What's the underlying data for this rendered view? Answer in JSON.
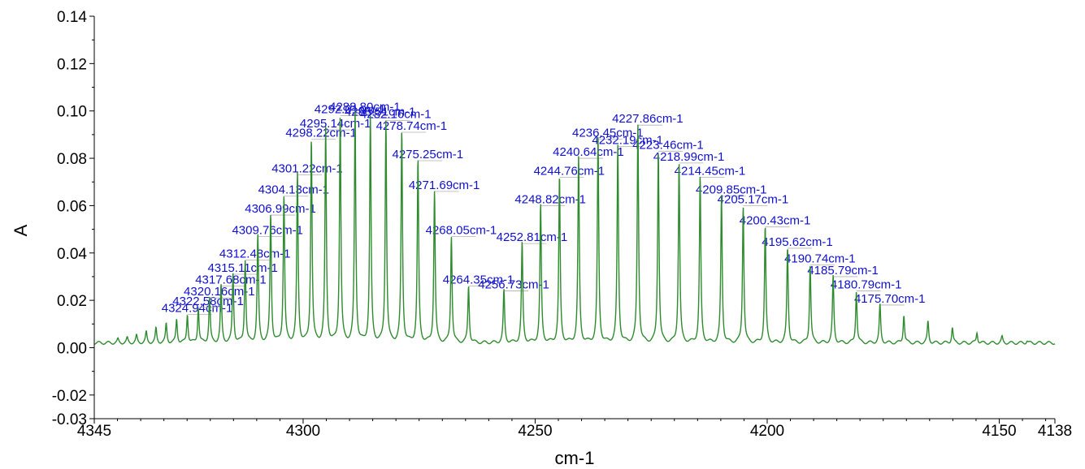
{
  "chart_data": {
    "type": "line",
    "title": "",
    "xlabel": "cm-1",
    "ylabel": "A",
    "xlim": [
      4345,
      4138
    ],
    "ylim": [
      -0.03,
      0.14
    ],
    "x_reversed": true,
    "grid": false,
    "x_ticks": [
      4345,
      4300,
      4250,
      4200,
      4150,
      4138
    ],
    "x_tick_labels": [
      "4345",
      "4300",
      "4250",
      "4200",
      "4150",
      "4138"
    ],
    "y_ticks": [
      -0.03,
      -0.02,
      0.0,
      0.02,
      0.04,
      0.06,
      0.08,
      0.1,
      0.12,
      0.14
    ],
    "y_tick_labels": [
      "-0.03",
      "-0.02",
      "0.00",
      "0.02",
      "0.04",
      "0.06",
      "0.08",
      "0.10",
      "0.12",
      "0.14"
    ],
    "line_color": "#2e8b2e",
    "label_color": "#1010d0",
    "baseline": 0.002,
    "labeled_peaks": [
      {
        "x": 4324.94,
        "y": 0.014,
        "label": "4324.94cm-1"
      },
      {
        "x": 4322.58,
        "y": 0.017,
        "label": "4322.58cm-1"
      },
      {
        "x": 4320.16,
        "y": 0.021,
        "label": "4320.16cm-1"
      },
      {
        "x": 4317.68,
        "y": 0.026,
        "label": "4317.68cm-1"
      },
      {
        "x": 4315.11,
        "y": 0.031,
        "label": "4315.11cm-1"
      },
      {
        "x": 4312.48,
        "y": 0.037,
        "label": "4312.48cm-1"
      },
      {
        "x": 4309.76,
        "y": 0.047,
        "label": "4309.76cm-1"
      },
      {
        "x": 4306.99,
        "y": 0.056,
        "label": "4306.99cm-1"
      },
      {
        "x": 4304.13,
        "y": 0.064,
        "label": "4304.13cm-1"
      },
      {
        "x": 4301.22,
        "y": 0.073,
        "label": "4301.22cm-1"
      },
      {
        "x": 4298.22,
        "y": 0.088,
        "label": "4298.22cm-1"
      },
      {
        "x": 4295.14,
        "y": 0.092,
        "label": "4295.14cm-1"
      },
      {
        "x": 4292.01,
        "y": 0.098,
        "label": "4292.01cm-1"
      },
      {
        "x": 4288.8,
        "y": 0.099,
        "label": "4288.80cm-1"
      },
      {
        "x": 4285.51,
        "y": 0.097,
        "label": "4285.51cm-1"
      },
      {
        "x": 4282.16,
        "y": 0.096,
        "label": "4282.16cm-1"
      },
      {
        "x": 4278.74,
        "y": 0.091,
        "label": "4278.74cm-1"
      },
      {
        "x": 4275.25,
        "y": 0.079,
        "label": "4275.25cm-1"
      },
      {
        "x": 4271.69,
        "y": 0.066,
        "label": "4271.69cm-1"
      },
      {
        "x": 4268.05,
        "y": 0.047,
        "label": "4268.05cm-1"
      },
      {
        "x": 4264.35,
        "y": 0.026,
        "label": "4264.35cm-1"
      },
      {
        "x": 4256.73,
        "y": 0.024,
        "label": "4256.73cm-1"
      },
      {
        "x": 4252.81,
        "y": 0.044,
        "label": "4252.81cm-1"
      },
      {
        "x": 4248.82,
        "y": 0.06,
        "label": "4248.82cm-1"
      },
      {
        "x": 4244.76,
        "y": 0.072,
        "label": "4244.76cm-1"
      },
      {
        "x": 4240.64,
        "y": 0.08,
        "label": "4240.64cm-1"
      },
      {
        "x": 4236.45,
        "y": 0.088,
        "label": "4236.45cm-1"
      },
      {
        "x": 4232.19,
        "y": 0.085,
        "label": "4232.19cm-1"
      },
      {
        "x": 4227.86,
        "y": 0.094,
        "label": "4227.86cm-1"
      },
      {
        "x": 4223.46,
        "y": 0.083,
        "label": "4223.46cm-1"
      },
      {
        "x": 4218.99,
        "y": 0.078,
        "label": "4218.99cm-1"
      },
      {
        "x": 4214.45,
        "y": 0.072,
        "label": "4214.45cm-1"
      },
      {
        "x": 4209.85,
        "y": 0.064,
        "label": "4209.85cm-1"
      },
      {
        "x": 4205.17,
        "y": 0.06,
        "label": "4205.17cm-1"
      },
      {
        "x": 4200.43,
        "y": 0.051,
        "label": "4200.43cm-1"
      },
      {
        "x": 4195.62,
        "y": 0.042,
        "label": "4195.62cm-1"
      },
      {
        "x": 4190.74,
        "y": 0.035,
        "label": "4190.74cm-1"
      },
      {
        "x": 4185.79,
        "y": 0.03,
        "label": "4185.79cm-1"
      },
      {
        "x": 4180.79,
        "y": 0.024,
        "label": "4180.79cm-1"
      },
      {
        "x": 4175.7,
        "y": 0.018,
        "label": "4175.70cm-1"
      }
    ],
    "unlabeled_peaks": [
      {
        "x": 4327.26,
        "y": 0.012
      },
      {
        "x": 4329.5,
        "y": 0.01
      },
      {
        "x": 4331.7,
        "y": 0.008
      },
      {
        "x": 4333.8,
        "y": 0.0065
      },
      {
        "x": 4335.9,
        "y": 0.005
      },
      {
        "x": 4337.9,
        "y": 0.004
      },
      {
        "x": 4339.9,
        "y": 0.0035
      },
      {
        "x": 4170.55,
        "y": 0.014
      },
      {
        "x": 4165.35,
        "y": 0.011
      },
      {
        "x": 4160.1,
        "y": 0.0085
      },
      {
        "x": 4154.8,
        "y": 0.0065
      },
      {
        "x": 4149.4,
        "y": 0.0045
      },
      {
        "x": 4144.0,
        "y": 0.003
      }
    ]
  }
}
